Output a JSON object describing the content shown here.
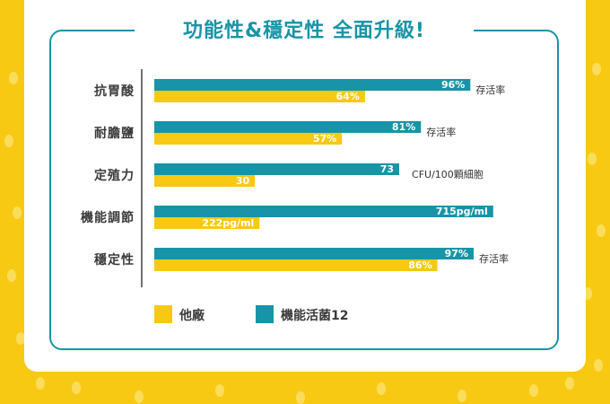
{
  "title": "功能性&穩定性 全面升級!",
  "colors": {
    "background": "#F8C913",
    "primary": "#1794A7",
    "competitor": "#F8C913"
  },
  "chart_data": {
    "type": "bar",
    "orientation": "horizontal",
    "categories": [
      "抗胃酸",
      "耐膽鹽",
      "定殖力",
      "機能調節",
      "穩定性"
    ],
    "series": [
      {
        "name": "機能活菌12",
        "values": [
          96,
          81,
          73,
          715,
          97
        ],
        "labels": [
          "96%",
          "81%",
          "73",
          "715pg/ml",
          "97%"
        ],
        "color": "#1794A7"
      },
      {
        "name": "他廠",
        "values": [
          64,
          57,
          30,
          222,
          86
        ],
        "labels": [
          "64%",
          "57%",
          "30",
          "222pg/ml",
          "86%"
        ],
        "color": "#F8C913"
      }
    ],
    "notes": [
      "存活率",
      "存活率",
      "CFU/100顆細胞",
      "",
      "存活率"
    ],
    "legend": "bottom-left",
    "grid": false
  }
}
